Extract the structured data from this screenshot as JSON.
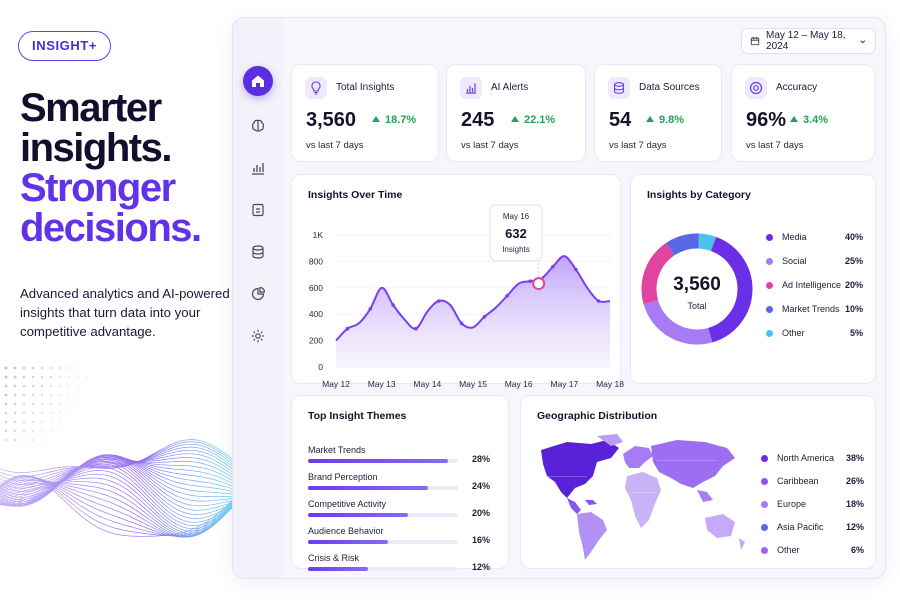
{
  "brand": {
    "name": "INSIGHT+"
  },
  "hero": {
    "line1": "Smarter",
    "line2": "insights.",
    "line3": "Stronger",
    "line4": "decisions.",
    "tagline": "Advanced analytics and AI-powered insights that turn data into your competitive advantage."
  },
  "sidebar": {
    "items": [
      {
        "icon": "home-icon",
        "active": true
      },
      {
        "icon": "brain-icon",
        "active": false
      },
      {
        "icon": "bar-chart-icon",
        "active": false
      },
      {
        "icon": "document-icon",
        "active": false
      },
      {
        "icon": "database-icon",
        "active": false
      },
      {
        "icon": "pie-chart-icon",
        "active": false
      },
      {
        "icon": "settings-icon",
        "active": false
      }
    ]
  },
  "date_range": {
    "label": "May 12 – May 18, 2024",
    "icon": "calendar-icon"
  },
  "kpis": [
    {
      "label": "Total Insights",
      "value": "3,560",
      "delta": "18.7%",
      "sub": "vs last 7 days",
      "icon": "lightbulb-icon"
    },
    {
      "label": "AI Alerts",
      "value": "245",
      "delta": "22.1%",
      "sub": "vs last 7 days",
      "icon": "bar-chart-icon"
    },
    {
      "label": "Data Sources",
      "value": "54",
      "delta": "9.8%",
      "sub": "vs last 7 days",
      "icon": "database-icon"
    },
    {
      "label": "Accuracy",
      "value": "96%",
      "delta": "3.4%",
      "sub": "vs last 7 days",
      "icon": "target-icon"
    }
  ],
  "insights_over_time": {
    "title": "Insights Over Time",
    "tooltip": {
      "date": "May 16",
      "value": "632",
      "label": "Insights"
    }
  },
  "category": {
    "title": "Insights by Category",
    "total_value": "3,560",
    "total_label": "Total",
    "items": [
      {
        "name": "Media",
        "pct": "40%",
        "value": 40,
        "color": "#6a2fe6"
      },
      {
        "name": "Social",
        "pct": "25%",
        "value": 25,
        "color": "#a77bf3"
      },
      {
        "name": "Ad Intelligence",
        "pct": "20%",
        "value": 20,
        "color": "#e0449e"
      },
      {
        "name": "Market Trends",
        "pct": "10%",
        "value": 10,
        "color": "#5867e8"
      },
      {
        "name": "Other",
        "pct": "5%",
        "value": 5,
        "color": "#4cc3ec"
      }
    ]
  },
  "themes": {
    "title": "Top Insight Themes",
    "items": [
      {
        "name": "Market Trends",
        "pct": "28%",
        "value": 28
      },
      {
        "name": "Brand Perception",
        "pct": "24%",
        "value": 24
      },
      {
        "name": "Competitive Activity",
        "pct": "20%",
        "value": 20
      },
      {
        "name": "Audience Behavior",
        "pct": "16%",
        "value": 16
      },
      {
        "name": "Crisis & Risk",
        "pct": "12%",
        "value": 12
      }
    ]
  },
  "geo": {
    "title": "Geographic Distribution",
    "items": [
      {
        "name": "North America",
        "pct": "38%",
        "color": "#6a2fe6"
      },
      {
        "name": "Caribbean",
        "pct": "26%",
        "color": "#8a55ef"
      },
      {
        "name": "Europe",
        "pct": "18%",
        "color": "#a77bf3"
      },
      {
        "name": "Asia Pacific",
        "pct": "12%",
        "color": "#5867e8"
      },
      {
        "name": "Other",
        "pct": "6%",
        "color": "#9a63ef"
      }
    ]
  },
  "chart_data": {
    "type": "area",
    "title": "Insights Over Time",
    "x_ticks": [
      "May 12",
      "May 13",
      "May 14",
      "May 15",
      "May 16",
      "May 17",
      "May 18"
    ],
    "y_ticks": [
      "0",
      "200",
      "400",
      "600",
      "800",
      "1K"
    ],
    "ylim": [
      0,
      1000
    ],
    "grid": true,
    "series": [
      {
        "x": [
          0,
          0.25,
          0.5,
          0.75,
          1,
          1.25,
          1.5,
          1.75,
          2,
          2.25,
          2.5,
          2.75,
          3,
          3.25,
          3.5,
          3.75,
          4,
          4.25,
          4.5,
          4.75,
          5,
          5.25,
          5.5,
          5.75,
          6
        ],
        "values": [
          200,
          290,
          330,
          440,
          600,
          470,
          360,
          290,
          420,
          500,
          470,
          330,
          300,
          380,
          450,
          540,
          632,
          650,
          670,
          760,
          840,
          740,
          600,
          500,
          500
        ],
        "color": "#7b3fef"
      }
    ],
    "highlight": {
      "x": "May 16",
      "value": 632
    }
  }
}
